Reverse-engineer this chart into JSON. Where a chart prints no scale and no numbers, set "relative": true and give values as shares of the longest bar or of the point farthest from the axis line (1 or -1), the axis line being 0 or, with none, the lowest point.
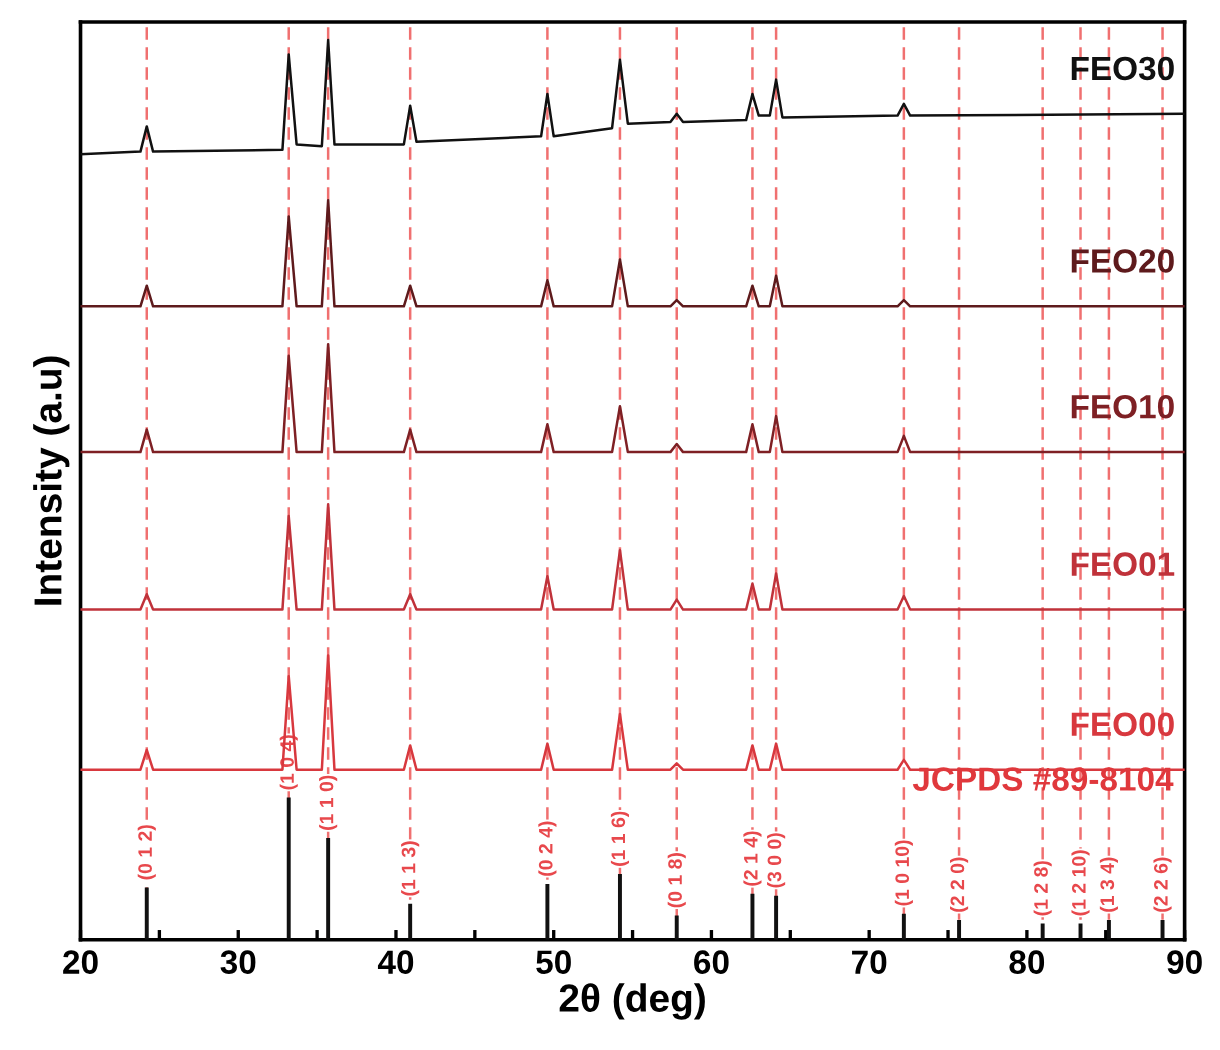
{
  "chart_data": {
    "type": "line",
    "relative": true,
    "xlabel": "2θ (deg)",
    "ylabel": "Intensity (a.u)",
    "xlim": [
      20,
      90
    ],
    "xticks": [
      20,
      {
        "value": 25,
        "label": null
      },
      30,
      {
        "value": 35,
        "label": null
      },
      40,
      {
        "value": 45,
        "label": null
      },
      50,
      {
        "value": 55,
        "label": null
      },
      60,
      {
        "value": 65,
        "label": null
      },
      70,
      {
        "value": 75,
        "label": null
      },
      80,
      {
        "value": 85,
        "label": null
      },
      90
    ],
    "grid": false,
    "legend": false,
    "marker": "none",
    "line_style": "solid",
    "series": [
      {
        "name": "FEO30",
        "color": "#111111",
        "x": [
          20,
          23.8,
          24.2,
          24.6,
          32.8,
          33.2,
          33.7,
          35.3,
          35.7,
          36.1,
          40.5,
          40.9,
          41.3,
          49.2,
          49.6,
          50.0,
          53.7,
          54.2,
          54.7,
          57.4,
          57.8,
          58.2,
          62.2,
          62.6,
          63.0,
          63.7,
          64.1,
          64.5,
          71.8,
          72.2,
          72.6,
          90
        ],
        "values": [
          0.873,
          0.876,
          0.904,
          0.876,
          0.878,
          0.984,
          0.884,
          0.882,
          1.0,
          0.884,
          0.884,
          0.927,
          0.887,
          0.893,
          0.94,
          0.893,
          0.902,
          0.978,
          0.907,
          0.909,
          0.918,
          0.909,
          0.911,
          0.94,
          0.916,
          0.916,
          0.956,
          0.914,
          0.916,
          0.929,
          0.916,
          0.918
        ]
      },
      {
        "name": "FEO20",
        "color": "#5e1a1c",
        "x": [
          20,
          23.8,
          24.2,
          24.6,
          32.8,
          33.2,
          33.7,
          35.3,
          35.7,
          36.1,
          40.5,
          40.9,
          41.3,
          49.2,
          49.6,
          50.0,
          53.7,
          54.2,
          54.7,
          57.4,
          57.8,
          58.2,
          62.2,
          62.6,
          63.0,
          63.7,
          64.1,
          64.5,
          71.8,
          72.2,
          72.6,
          90
        ],
        "values": [
          0.704,
          0.704,
          0.727,
          0.704,
          0.704,
          0.804,
          0.704,
          0.704,
          0.822,
          0.704,
          0.704,
          0.727,
          0.704,
          0.704,
          0.733,
          0.704,
          0.704,
          0.756,
          0.704,
          0.704,
          0.711,
          0.704,
          0.704,
          0.727,
          0.704,
          0.704,
          0.738,
          0.704,
          0.704,
          0.711,
          0.704,
          0.704
        ]
      },
      {
        "name": "FEO10",
        "color": "#7e2024",
        "x": [
          20,
          23.8,
          24.2,
          24.6,
          32.8,
          33.2,
          33.7,
          35.3,
          35.7,
          36.1,
          40.5,
          40.9,
          41.3,
          49.2,
          49.6,
          50.0,
          53.7,
          54.2,
          54.7,
          57.4,
          57.8,
          58.2,
          62.2,
          62.6,
          63.0,
          63.7,
          64.1,
          64.5,
          71.8,
          72.2,
          72.6,
          90
        ],
        "values": [
          0.542,
          0.542,
          0.567,
          0.542,
          0.542,
          0.649,
          0.542,
          0.542,
          0.662,
          0.542,
          0.542,
          0.567,
          0.542,
          0.542,
          0.573,
          0.542,
          0.542,
          0.593,
          0.542,
          0.542,
          0.551,
          0.542,
          0.542,
          0.573,
          0.542,
          0.542,
          0.582,
          0.542,
          0.542,
          0.56,
          0.542,
          0.542
        ]
      },
      {
        "name": "FEO01",
        "color": "#c0323a",
        "x": [
          20,
          23.8,
          24.2,
          24.6,
          32.8,
          33.2,
          33.7,
          35.3,
          35.7,
          36.1,
          40.5,
          40.9,
          41.3,
          49.2,
          49.6,
          50.0,
          53.7,
          54.2,
          54.7,
          57.4,
          57.8,
          58.2,
          62.2,
          62.6,
          63.0,
          63.7,
          64.1,
          64.5,
          71.8,
          72.2,
          72.6,
          90
        ],
        "values": [
          0.367,
          0.367,
          0.384,
          0.367,
          0.367,
          0.471,
          0.367,
          0.367,
          0.484,
          0.367,
          0.367,
          0.384,
          0.367,
          0.367,
          0.404,
          0.367,
          0.367,
          0.433,
          0.367,
          0.367,
          0.378,
          0.367,
          0.367,
          0.396,
          0.367,
          0.367,
          0.407,
          0.367,
          0.367,
          0.382,
          0.367,
          0.367
        ]
      },
      {
        "name": "FEO00",
        "color": "#d8383e",
        "x": [
          20,
          23.8,
          24.2,
          24.6,
          32.8,
          33.2,
          33.7,
          35.3,
          35.7,
          36.1,
          40.5,
          40.9,
          41.3,
          49.2,
          49.6,
          50.0,
          53.7,
          54.2,
          54.7,
          57.4,
          57.8,
          58.2,
          62.2,
          62.6,
          63.0,
          63.7,
          64.1,
          64.5,
          71.8,
          72.2,
          72.6,
          90
        ],
        "values": [
          0.189,
          0.189,
          0.211,
          0.189,
          0.189,
          0.293,
          0.189,
          0.189,
          0.316,
          0.189,
          0.189,
          0.216,
          0.189,
          0.189,
          0.218,
          0.189,
          0.189,
          0.251,
          0.189,
          0.189,
          0.196,
          0.189,
          0.189,
          0.216,
          0.189,
          0.189,
          0.218,
          0.189,
          0.189,
          0.2,
          0.189,
          0.189
        ]
      },
      {
        "type": "bar",
        "color": "#111111",
        "x": [
          24.2,
          33.2,
          35.7,
          40.9,
          49.6,
          54.2,
          57.8,
          62.6,
          64.1,
          72.2,
          75.7,
          81.0,
          83.4,
          85.2,
          88.6
        ],
        "values": [
          0.058,
          0.158,
          0.113,
          0.04,
          0.062,
          0.073,
          0.027,
          0.051,
          0.049,
          0.029,
          0.022,
          0.018,
          0.018,
          0.022,
          0.022
        ]
      }
    ],
    "ref_lines": [
      {
        "axis": "x",
        "value": 24.2,
        "color": "#f07070",
        "line_style": "dashed"
      },
      {
        "axis": "x",
        "value": 33.2,
        "color": "#f07070",
        "line_style": "dashed"
      },
      {
        "axis": "x",
        "value": 35.7,
        "color": "#f07070",
        "line_style": "dashed"
      },
      {
        "axis": "x",
        "value": 40.9,
        "color": "#f07070",
        "line_style": "dashed"
      },
      {
        "axis": "x",
        "value": 49.6,
        "color": "#f07070",
        "line_style": "dashed"
      },
      {
        "axis": "x",
        "value": 54.2,
        "color": "#f07070",
        "line_style": "dashed"
      },
      {
        "axis": "x",
        "value": 57.8,
        "color": "#f07070",
        "line_style": "dashed"
      },
      {
        "axis": "x",
        "value": 62.6,
        "color": "#f07070",
        "line_style": "dashed"
      },
      {
        "axis": "x",
        "value": 64.1,
        "color": "#f07070",
        "line_style": "dashed"
      },
      {
        "axis": "x",
        "value": 72.2,
        "color": "#f07070",
        "line_style": "dashed"
      },
      {
        "axis": "x",
        "value": 75.7,
        "color": "#f07070",
        "line_style": "dashed"
      },
      {
        "axis": "x",
        "value": 81.0,
        "color": "#f07070",
        "line_style": "dashed"
      },
      {
        "axis": "x",
        "value": 83.4,
        "color": "#f07070",
        "line_style": "dashed"
      },
      {
        "axis": "x",
        "value": 85.2,
        "color": "#f07070",
        "line_style": "dashed"
      },
      {
        "axis": "x",
        "value": 88.6,
        "color": "#f07070",
        "line_style": "dashed"
      }
    ],
    "annotations": [
      {
        "text": "(0 1 2)",
        "x": 24.2,
        "y": 0.058
      },
      {
        "text": "(1 0 4)",
        "x": 33.2,
        "y": 0.158
      },
      {
        "text": "(1 1 0)",
        "x": 35.7,
        "y": 0.113
      },
      {
        "text": "(1 1 3)",
        "x": 40.9,
        "y": 0.04
      },
      {
        "text": "(0 2 4)",
        "x": 49.6,
        "y": 0.062
      },
      {
        "text": "(1 1 6)",
        "x": 54.2,
        "y": 0.073
      },
      {
        "text": "(0 1 8)",
        "x": 57.8,
        "y": 0.027
      },
      {
        "text": "(2 1 4)",
        "x": 62.6,
        "y": 0.051
      },
      {
        "text": "(3 0 0)",
        "x": 64.1,
        "y": 0.049
      },
      {
        "text": "(1 0 10)",
        "x": 72.2,
        "y": 0.029
      },
      {
        "text": "(2 2 0)",
        "x": 75.7,
        "y": 0.022
      },
      {
        "text": "(1 2 8)",
        "x": 81.0,
        "y": 0.018
      },
      {
        "text": "(1 2 10)",
        "x": 83.4,
        "y": 0.018
      },
      {
        "text": "(1 3 4)",
        "x": 85.2,
        "y": 0.022
      },
      {
        "text": "(2 2 6)",
        "x": 88.6,
        "y": 0.022
      },
      "JCPDS #89-8104"
    ]
  }
}
